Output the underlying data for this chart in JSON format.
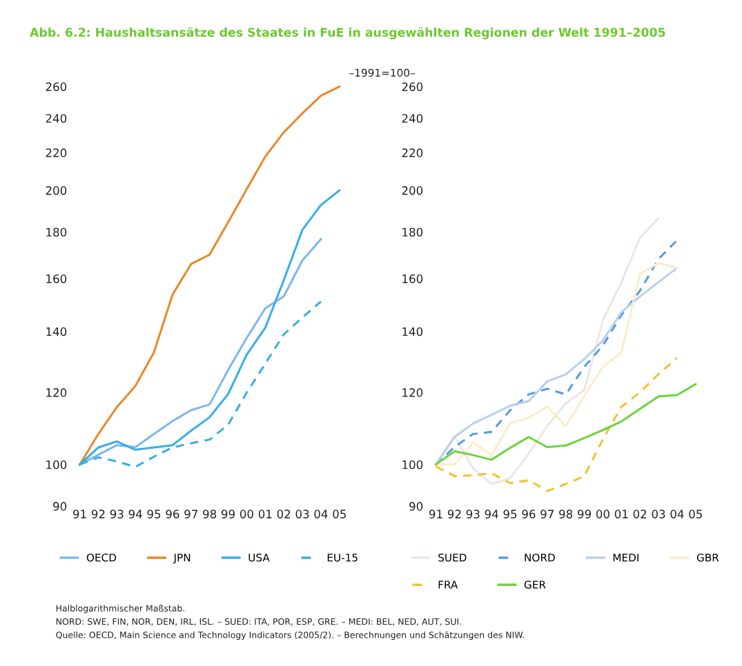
{
  "chart_data": [
    {
      "type": "line",
      "title": "Abb. 6.2: Haushaltsansätze des Staates in FuE in ausgewählten Regionen der Welt 1991–2005",
      "categories": [
        "91",
        "92",
        "93",
        "94",
        "95",
        "96",
        "97",
        "98",
        "99",
        "00",
        "01",
        "02",
        "03",
        "04",
        "05"
      ],
      "log": "y",
      "ylim": [
        90,
        260
      ],
      "yticks": [
        90,
        100,
        120,
        140,
        160,
        180,
        200,
        220,
        240,
        260
      ],
      "legend": "bottom",
      "grid": false,
      "marker": "none",
      "series": [
        {
          "name": "OECD",
          "color": "#7fb7e8",
          "line_style": "solid",
          "values": [
            100,
            102.5,
            105,
            104.5,
            108,
            111.6,
            114.7,
            116.4,
            127,
            137.7,
            148.4,
            153,
            167.5,
            176.8,
            null
          ]
        },
        {
          "name": "JPN",
          "color": "#e8892a",
          "line_style": "solid",
          "values": [
            100,
            108,
            115.6,
            122,
            132.8,
            153.6,
            166,
            170,
            184.5,
            200.6,
            217.8,
            231.6,
            243,
            254,
            260
          ]
        },
        {
          "name": "USA",
          "color": "#3aaee8",
          "line_style": "solid",
          "values": [
            100,
            104.4,
            106,
            103.8,
            104.4,
            105,
            108.9,
            112.7,
            119.5,
            132,
            141.3,
            159.4,
            181,
            192.7,
            200
          ]
        },
        {
          "name": "EU-15",
          "color": "#3aaee8",
          "line_style": "dashed",
          "values": [
            100,
            101.8,
            100.8,
            99.4,
            102,
            104.4,
            105.5,
            106.5,
            110.6,
            119.9,
            129,
            139,
            145,
            151,
            null
          ]
        }
      ],
      "annotations": [
        "–1991=100–",
        "Halblogarithmischer Maßstab.",
        "NORD: SWE, FIN, NOR, DEN, IRL, ISL. – SUED: ITA, POR, ESP, GRE. – MEDI: BEL, NED, AUT, SUI.",
        "Quelle: OECD, Main Science and Technology Indicators (2005/2). – Berechnungen und Schätzungen des NIW."
      ]
    },
    {
      "type": "line",
      "categories": [
        "91",
        "92",
        "93",
        "94",
        "95",
        "96",
        "97",
        "98",
        "99",
        "00",
        "01",
        "02",
        "03",
        "04",
        "05"
      ],
      "log": "y",
      "ylim": [
        90,
        260
      ],
      "yticks": [
        90,
        100,
        120,
        140,
        160,
        180,
        200,
        220,
        240,
        260
      ],
      "legend": "bottom",
      "grid": false,
      "marker": "none",
      "series": [
        {
          "name": "SUED",
          "color": "#ece6e4",
          "line_style": "solid",
          "values": [
            100,
            107.4,
            99.1,
            95.2,
            96.6,
            102.8,
            110.2,
            116.8,
            120.7,
            144,
            158.6,
            177.5,
            186.3,
            null,
            null
          ]
        },
        {
          "name": "NORD",
          "color": "#5b9be0",
          "line_style": "dashed",
          "values": [
            100,
            104.5,
            108,
            108.6,
            114.7,
            119.4,
            121.1,
            119.4,
            128,
            135.1,
            145.9,
            155.2,
            168.1,
            176.3,
            null
          ]
        },
        {
          "name": "MEDI",
          "color": "#b8d0ee",
          "line_style": "solid",
          "values": [
            100,
            107.2,
            110.9,
            113.4,
            116,
            117.4,
            123.4,
            125.6,
            130.6,
            136.8,
            147,
            152.9,
            158.6,
            164.4,
            null
          ]
        },
        {
          "name": "GBR",
          "color": "#fbeccb",
          "line_style": "solid",
          "values": [
            100,
            100,
            105.7,
            102.4,
            111,
            112.6,
            115.7,
            110.2,
            119,
            128,
            132.7,
            162,
            166.4,
            164.4,
            null
          ]
        },
        {
          "name": "FRA",
          "color": "#f2c232",
          "line_style": "dashed",
          "values": [
            99.5,
            97.1,
            97.3,
            97.8,
            95.4,
            96.1,
            93.5,
            95.2,
            97.1,
            106.6,
            115.7,
            120,
            125.7,
            130.9,
            null
          ]
        },
        {
          "name": "GER",
          "color": "#6fd33c",
          "line_style": "solid",
          "values": [
            100,
            103.4,
            102.4,
            101.2,
            104.3,
            107.2,
            104.5,
            104.9,
            106.9,
            109.1,
            111.5,
            115.1,
            118.8,
            119.2,
            122.5
          ]
        }
      ]
    }
  ]
}
